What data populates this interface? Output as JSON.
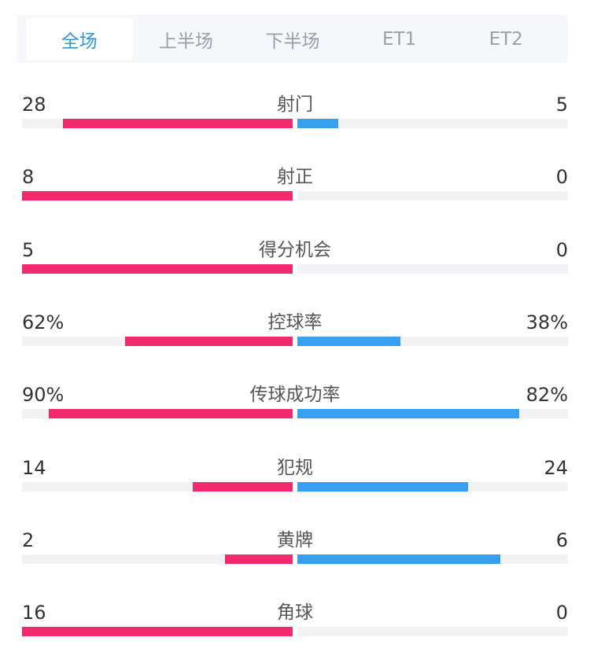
{
  "tabs": [
    {
      "label": "全场",
      "active": true
    },
    {
      "label": "上半场"
    },
    {
      "label": "下半场"
    },
    {
      "label": "ET1"
    },
    {
      "label": "ET2"
    }
  ],
  "colors": {
    "home": "#f2296e",
    "away": "#379ff0",
    "track": "#f2f2f4",
    "active_tab": "#2f96d8"
  },
  "stats": [
    {
      "label": "射门",
      "home": "28",
      "away": "5",
      "home_fill": 0.85,
      "away_fill": 0.15
    },
    {
      "label": "射正",
      "home": "8",
      "away": "0",
      "home_fill": 1.0,
      "away_fill": 0
    },
    {
      "label": "得分机会",
      "home": "5",
      "away": "0",
      "home_fill": 1.0,
      "away_fill": 0
    },
    {
      "label": "控球率",
      "home": "62%",
      "away": "38%",
      "home_fill": 0.62,
      "away_fill": 0.38
    },
    {
      "label": "传球成功率",
      "home": "90%",
      "away": "82%",
      "home_fill": 0.9,
      "away_fill": 0.82
    },
    {
      "label": "犯规",
      "home": "14",
      "away": "24",
      "home_fill": 0.368,
      "away_fill": 0.632
    },
    {
      "label": "黄牌",
      "home": "2",
      "away": "6",
      "home_fill": 0.25,
      "away_fill": 0.75
    },
    {
      "label": "角球",
      "home": "16",
      "away": "0",
      "home_fill": 1.0,
      "away_fill": 0
    }
  ]
}
